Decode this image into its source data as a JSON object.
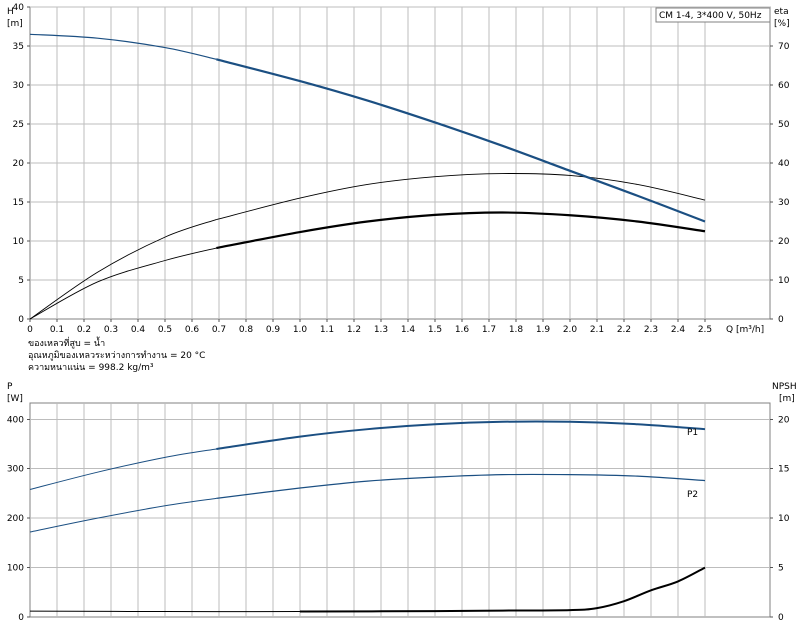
{
  "chart_data": [
    {
      "type": "line",
      "title": "CM 1-4, 3*400 V, 50Hz",
      "xlabel": "Q [m³/h]",
      "ylabel_left_line1": "H",
      "ylabel_left_line2": "[m]",
      "ylabel_right_line1": "eta",
      "ylabel_right_line2": "[%]",
      "xlim": [
        0,
        2.5
      ],
      "ylim_left": [
        0,
        40
      ],
      "ylim_right": [
        0,
        80
      ],
      "x_ticks": [
        "0",
        "0.1",
        "0.2",
        "0.3",
        "0.4",
        "0.5",
        "0.6",
        "0.7",
        "0.8",
        "0.9",
        "1.0",
        "1.1",
        "1.2",
        "1.3",
        "1.4",
        "1.5",
        "1.6",
        "1.7",
        "1.8",
        "1.9",
        "2.0",
        "2.1",
        "2.2",
        "2.3",
        "2.4",
        "2.5"
      ],
      "y_ticks_left": [
        "0",
        "5",
        "10",
        "15",
        "20",
        "25",
        "30",
        "35",
        "40"
      ],
      "y_ticks_right": [
        "0",
        "10",
        "20",
        "30",
        "40",
        "50",
        "60",
        "70"
      ],
      "grid": true,
      "series": [
        {
          "role": "head",
          "axis": "left",
          "color": "#1b4f82",
          "x": [
            0,
            0.25,
            0.5,
            0.69,
            1.0,
            1.25,
            1.5,
            1.75,
            2.0,
            2.25,
            2.5
          ],
          "y": [
            36.5,
            36.0,
            34.8,
            33.3,
            30.5,
            28.0,
            25.2,
            22.2,
            19.0,
            15.8,
            12.5
          ]
        },
        {
          "role": "efficiency-total",
          "axis": "right",
          "color": "#000000",
          "x": [
            0,
            0.25,
            0.5,
            0.69,
            1.0,
            1.25,
            1.5,
            1.75,
            2.0,
            2.25,
            2.5
          ],
          "y": [
            0,
            12,
            21,
            25.5,
            31,
            34.5,
            36.5,
            37.3,
            36.8,
            34.5,
            30.5
          ]
        },
        {
          "role": "efficiency-pump",
          "axis": "right",
          "color": "#000000",
          "x": [
            0,
            0.25,
            0.5,
            0.69,
            1.0,
            1.25,
            1.5,
            1.75,
            2.0,
            2.25,
            2.5
          ],
          "y": [
            0,
            9.5,
            15,
            18.2,
            22.3,
            25.0,
            26.7,
            27.3,
            26.6,
            25.0,
            22.5
          ]
        }
      ]
    },
    {
      "type": "line",
      "xlabel": "",
      "ylabel_left_line1": "P",
      "ylabel_left_line2": "[W]",
      "ylabel_right_line1": "NPSH",
      "ylabel_right_line2": "[m]",
      "xlim": [
        0,
        2.5
      ],
      "ylim_left": [
        0,
        433
      ],
      "ylim_right": [
        0,
        21.65
      ],
      "y_ticks_left": [
        "0",
        "100",
        "200",
        "300",
        "400"
      ],
      "y_ticks_right": [
        "0",
        "5",
        "10",
        "15",
        "20"
      ],
      "grid": true,
      "series": [
        {
          "name": "P1",
          "axis": "left",
          "color": "#1b4f82",
          "x": [
            0,
            0.25,
            0.5,
            0.69,
            1.0,
            1.25,
            1.5,
            1.75,
            2.0,
            2.25,
            2.5
          ],
          "y": [
            258,
            293,
            323,
            340,
            365,
            380,
            390,
            395,
            395,
            390,
            380
          ]
        },
        {
          "name": "P2",
          "axis": "left",
          "color": "#1b4f82",
          "x": [
            0,
            0.25,
            0.5,
            0.69,
            1.0,
            1.25,
            1.5,
            1.75,
            2.0,
            2.25,
            2.5
          ],
          "y": [
            172,
            200,
            225,
            240,
            261,
            275,
            283,
            288,
            288,
            285,
            276
          ]
        },
        {
          "role": "npsh",
          "axis": "right",
          "color": "#000000",
          "x": [
            0,
            0.5,
            1.0,
            1.5,
            1.75,
            2.0,
            2.1,
            2.2,
            2.3,
            2.4,
            2.5
          ],
          "y": [
            0.6,
            0.55,
            0.55,
            0.6,
            0.65,
            0.7,
            0.9,
            1.6,
            2.7,
            3.6,
            5.0
          ]
        }
      ]
    }
  ],
  "notes": [
    "ของเหลวที่สูบ = น้ำ",
    "อุณหภูมิของเหลวระหว่างการทำงาน = 20 °C",
    "ความหนาแน่น = 998.2 kg/m³"
  ]
}
